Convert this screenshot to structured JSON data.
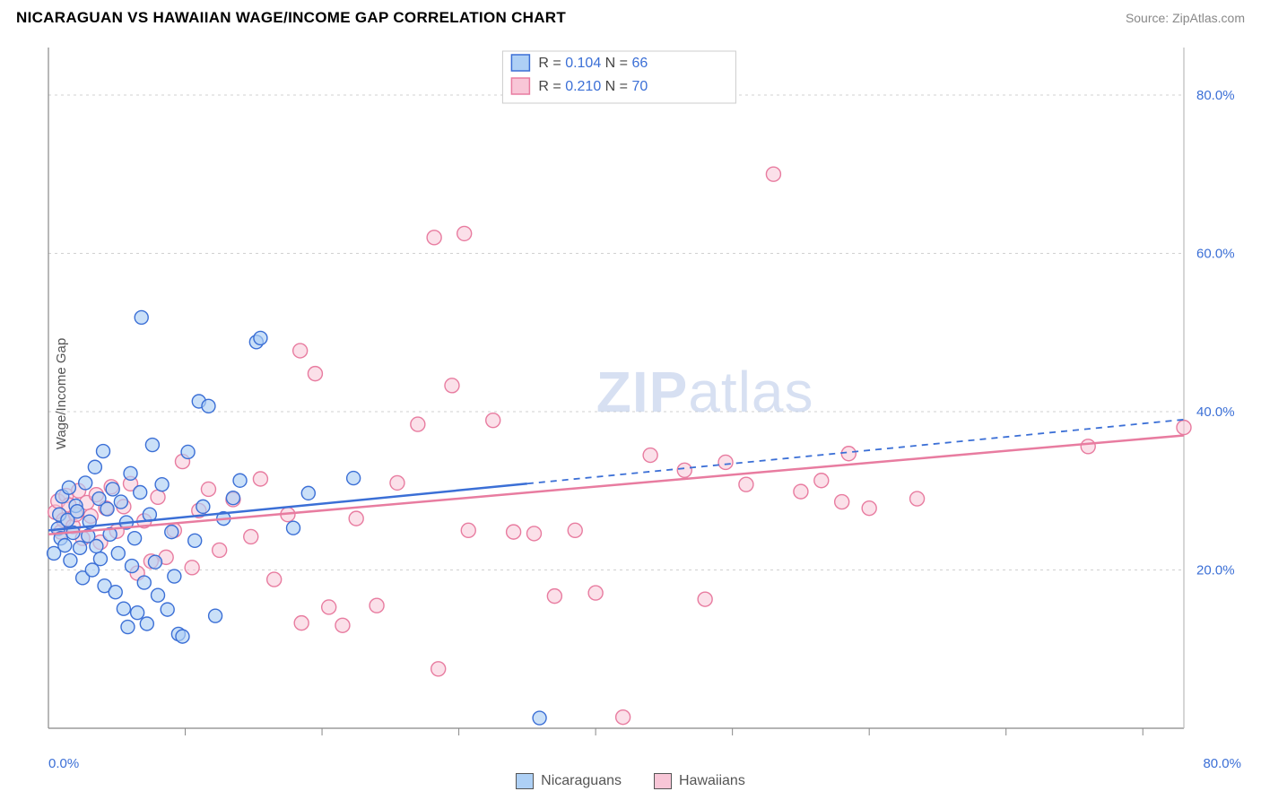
{
  "header": {
    "title": "NICARAGUAN VS HAWAIIAN WAGE/INCOME GAP CORRELATION CHART",
    "source_prefix": "Source: ",
    "source_name": "ZipAtlas.com",
    "title_color": "#404040",
    "title_fontsize": 17
  },
  "yaxis": {
    "label": "Wage/Income Gap",
    "label_fontsize": 15,
    "min": 0.0,
    "max": 86.0,
    "ticks": [
      20.0,
      40.0,
      60.0,
      80.0
    ],
    "tick_labels": [
      "20.0%",
      "40.0%",
      "60.0%",
      "80.0%"
    ],
    "grid_color": "#d0d0d0",
    "label_color": "#3b6fd6"
  },
  "xaxis": {
    "min": 0.0,
    "max": 83.0,
    "ticks": [
      10,
      20,
      30,
      40,
      50,
      60,
      70,
      80
    ],
    "min_label": "0.0%",
    "max_label": "80.0%",
    "label_color": "#3b6fd6"
  },
  "watermark": {
    "text_bold": "ZIP",
    "text_light": "atlas",
    "color": "#b8c8e8",
    "fontsize": 64
  },
  "stats_box": {
    "border_color": "#cccccc",
    "rows": [
      {
        "r_label": "R =",
        "r_value": "0.104",
        "n_label": "N =",
        "n_value": "66",
        "swatch": "blue"
      },
      {
        "r_label": "R =",
        "r_value": "0.210",
        "n_label": "N =",
        "n_value": "70",
        "swatch": "pink"
      }
    ]
  },
  "legend": {
    "items": [
      {
        "label": "Nicaraguans",
        "swatch": "blue"
      },
      {
        "label": "Hawaiians",
        "swatch": "pink"
      }
    ]
  },
  "series": {
    "nicaraguans": {
      "type": "scatter",
      "marker_shape": "circle",
      "marker_radius": 7.5,
      "fill": "#aed0f5",
      "stroke": "#3b6fd6",
      "stroke_width": 1.4,
      "fill_opacity": 0.65,
      "trend": {
        "y_at_xmin": 25.0,
        "y_at_xmax": 39.0,
        "solid_until_x": 35.0,
        "color": "#3b6fd6"
      },
      "points": [
        [
          0.4,
          22.1
        ],
        [
          0.7,
          25.2
        ],
        [
          0.8,
          27.0
        ],
        [
          0.9,
          24.0
        ],
        [
          1.0,
          29.3
        ],
        [
          1.2,
          23.1
        ],
        [
          1.4,
          26.3
        ],
        [
          1.5,
          30.4
        ],
        [
          1.6,
          21.2
        ],
        [
          1.8,
          24.7
        ],
        [
          2.0,
          28.1
        ],
        [
          2.1,
          27.4
        ],
        [
          2.3,
          22.8
        ],
        [
          2.5,
          19.0
        ],
        [
          2.7,
          31.0
        ],
        [
          2.9,
          24.3
        ],
        [
          3.0,
          26.1
        ],
        [
          3.2,
          20.0
        ],
        [
          3.4,
          33.0
        ],
        [
          3.5,
          23.0
        ],
        [
          3.7,
          29.0
        ],
        [
          3.8,
          21.4
        ],
        [
          4.0,
          35.0
        ],
        [
          4.1,
          18.0
        ],
        [
          4.3,
          27.7
        ],
        [
          4.5,
          24.5
        ],
        [
          4.7,
          30.2
        ],
        [
          4.9,
          17.2
        ],
        [
          5.1,
          22.1
        ],
        [
          5.3,
          28.6
        ],
        [
          5.5,
          15.1
        ],
        [
          5.7,
          26.0
        ],
        [
          5.8,
          12.8
        ],
        [
          6.0,
          32.2
        ],
        [
          6.1,
          20.5
        ],
        [
          6.3,
          24.0
        ],
        [
          6.5,
          14.6
        ],
        [
          6.7,
          29.8
        ],
        [
          6.8,
          51.9
        ],
        [
          7.0,
          18.4
        ],
        [
          7.2,
          13.2
        ],
        [
          7.4,
          27.0
        ],
        [
          7.6,
          35.8
        ],
        [
          7.8,
          21.0
        ],
        [
          8.0,
          16.8
        ],
        [
          8.3,
          30.8
        ],
        [
          8.7,
          15.0
        ],
        [
          9.0,
          24.8
        ],
        [
          9.2,
          19.2
        ],
        [
          9.5,
          11.9
        ],
        [
          9.8,
          11.6
        ],
        [
          10.2,
          34.9
        ],
        [
          10.7,
          23.7
        ],
        [
          11.0,
          41.3
        ],
        [
          11.3,
          28.0
        ],
        [
          11.7,
          40.7
        ],
        [
          12.2,
          14.2
        ],
        [
          12.8,
          26.5
        ],
        [
          13.5,
          29.1
        ],
        [
          14.0,
          31.3
        ],
        [
          15.2,
          48.8
        ],
        [
          15.5,
          49.3
        ],
        [
          17.9,
          25.3
        ],
        [
          19.0,
          29.7
        ],
        [
          22.3,
          31.6
        ],
        [
          35.9,
          1.3
        ]
      ]
    },
    "hawaiians": {
      "type": "scatter",
      "marker_shape": "circle",
      "marker_radius": 8.0,
      "fill": "#f8c6d7",
      "stroke": "#e87ca0",
      "stroke_width": 1.4,
      "fill_opacity": 0.55,
      "trend": {
        "y_at_xmin": 24.5,
        "y_at_xmax": 37.0,
        "solid_until_x": 83.0,
        "color": "#e87ca0"
      },
      "points": [
        [
          0.5,
          27.3
        ],
        [
          0.7,
          28.7
        ],
        [
          0.9,
          24.8
        ],
        [
          1.1,
          26.3
        ],
        [
          1.3,
          29.4
        ],
        [
          1.5,
          28.2
        ],
        [
          1.8,
          25.5
        ],
        [
          2.0,
          27.0
        ],
        [
          2.2,
          30.0
        ],
        [
          2.5,
          24.0
        ],
        [
          2.8,
          28.5
        ],
        [
          3.1,
          26.8
        ],
        [
          3.5,
          29.5
        ],
        [
          3.8,
          23.5
        ],
        [
          4.2,
          27.8
        ],
        [
          4.6,
          30.5
        ],
        [
          5.0,
          24.9
        ],
        [
          5.5,
          28.0
        ],
        [
          6.0,
          30.9
        ],
        [
          6.5,
          19.6
        ],
        [
          7.0,
          26.2
        ],
        [
          7.5,
          21.1
        ],
        [
          8.0,
          29.2
        ],
        [
          8.6,
          21.6
        ],
        [
          9.2,
          25.0
        ],
        [
          9.8,
          33.7
        ],
        [
          10.5,
          20.3
        ],
        [
          11.0,
          27.5
        ],
        [
          11.7,
          30.2
        ],
        [
          12.5,
          22.5
        ],
        [
          13.5,
          28.9
        ],
        [
          14.8,
          24.2
        ],
        [
          15.5,
          31.5
        ],
        [
          16.5,
          18.8
        ],
        [
          17.5,
          27.0
        ],
        [
          18.4,
          47.7
        ],
        [
          18.5,
          13.3
        ],
        [
          19.5,
          44.8
        ],
        [
          20.5,
          15.3
        ],
        [
          21.5,
          13.0
        ],
        [
          22.5,
          26.5
        ],
        [
          24.0,
          15.5
        ],
        [
          25.5,
          31.0
        ],
        [
          27.0,
          38.4
        ],
        [
          28.2,
          62.0
        ],
        [
          28.5,
          7.5
        ],
        [
          29.5,
          43.3
        ],
        [
          30.4,
          62.5
        ],
        [
          30.7,
          25.0
        ],
        [
          32.5,
          38.9
        ],
        [
          34.0,
          24.8
        ],
        [
          35.5,
          24.6
        ],
        [
          37.0,
          16.7
        ],
        [
          38.5,
          25.0
        ],
        [
          40.0,
          17.1
        ],
        [
          42.0,
          1.4
        ],
        [
          44.0,
          34.5
        ],
        [
          46.5,
          32.6
        ],
        [
          48.0,
          16.3
        ],
        [
          49.5,
          33.6
        ],
        [
          51.0,
          30.8
        ],
        [
          53.0,
          70.0
        ],
        [
          55.0,
          29.9
        ],
        [
          56.5,
          31.3
        ],
        [
          58.0,
          28.6
        ],
        [
          58.5,
          34.7
        ],
        [
          60.0,
          27.8
        ],
        [
          63.5,
          29.0
        ],
        [
          76.0,
          35.6
        ],
        [
          83.0,
          38.0
        ]
      ]
    }
  },
  "colors": {
    "blue_fill": "#aed0f5",
    "blue_stroke": "#3b6fd6",
    "pink_fill": "#f8c6d7",
    "pink_stroke": "#e87ca0",
    "background": "#ffffff"
  }
}
